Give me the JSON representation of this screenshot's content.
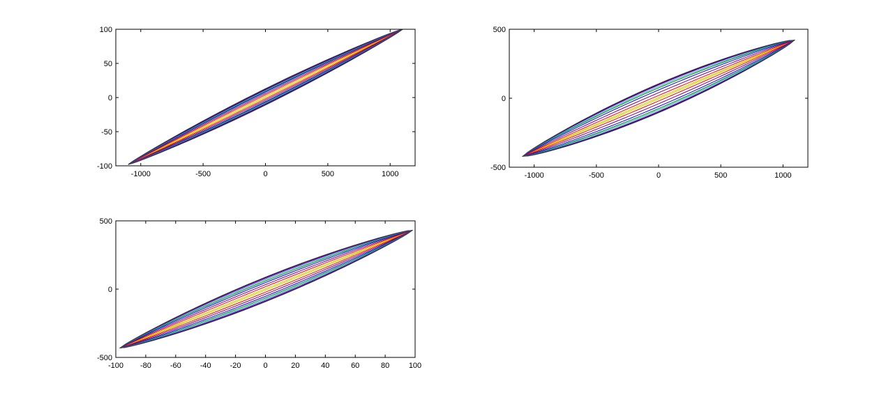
{
  "figure": {
    "background": "#ffffff"
  },
  "chart_data": [
    {
      "type": "line",
      "subplot": "top-left",
      "title": "",
      "xlabel": "",
      "ylabel": "",
      "xlim": [
        -1200,
        1200
      ],
      "ylim": [
        -100,
        100
      ],
      "xticks": [
        -1000,
        -500,
        0,
        500,
        1000
      ],
      "yticks": [
        -100,
        -50,
        0,
        50,
        100
      ],
      "grid": false,
      "legend": "none",
      "description": "family of nested hysteresis loops",
      "loop_tip_left": [
        -1100,
        -98
      ],
      "loop_tip_right": [
        1100,
        100
      ],
      "loop_half_widths": [
        1,
        3,
        5,
        7,
        8,
        9,
        10,
        11,
        12
      ],
      "series_colors": [
        "#cccc00",
        "#ff0000",
        "#800080",
        "#0000ff",
        "#008000",
        "#00bfbf",
        "#bf00bf",
        "#000080",
        "#404040"
      ]
    },
    {
      "type": "line",
      "subplot": "top-right",
      "title": "",
      "xlabel": "",
      "ylabel": "",
      "xlim": [
        -1200,
        1200
      ],
      "ylim": [
        -500,
        500
      ],
      "xticks": [
        -1000,
        -500,
        0,
        500,
        1000
      ],
      "yticks": [
        -500,
        0,
        500
      ],
      "grid": false,
      "legend": "none",
      "description": "family of nested hysteresis loops",
      "loop_tip_left": [
        -1090,
        -420
      ],
      "loop_tip_right": [
        1090,
        420
      ],
      "loop_half_widths": [
        5,
        20,
        40,
        60,
        75,
        85,
        95,
        100,
        105
      ],
      "series_colors": [
        "#cccc00",
        "#ff0000",
        "#800080",
        "#0000ff",
        "#008000",
        "#00bfbf",
        "#bf00bf",
        "#000080",
        "#404040"
      ]
    },
    {
      "type": "line",
      "subplot": "bottom-left",
      "title": "",
      "xlabel": "",
      "ylabel": "",
      "xlim": [
        -100,
        100
      ],
      "ylim": [
        -500,
        500
      ],
      "xticks": [
        -100,
        -80,
        -60,
        -40,
        -20,
        0,
        20,
        40,
        60,
        80,
        100
      ],
      "yticks": [
        -500,
        0,
        500
      ],
      "grid": false,
      "legend": "none",
      "description": "family of nested hysteresis loops",
      "loop_tip_left": [
        -97,
        -430
      ],
      "loop_tip_right": [
        98,
        430
      ],
      "loop_half_widths": [
        5,
        20,
        35,
        50,
        62,
        72,
        80,
        86,
        90
      ],
      "series_colors": [
        "#cccc00",
        "#ff0000",
        "#800080",
        "#0000ff",
        "#008000",
        "#00bfbf",
        "#bf00bf",
        "#000080",
        "#404040"
      ]
    }
  ]
}
